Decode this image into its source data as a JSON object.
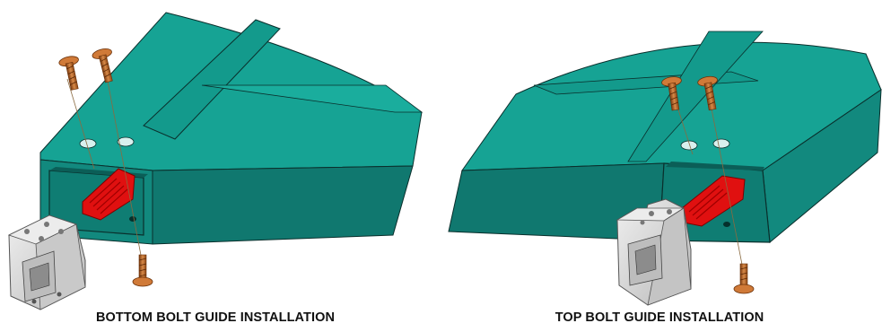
{
  "captions": {
    "left": "BOTTOM BOLT GUIDE INSTALLATION",
    "right": "TOP BOLT GUIDE INSTALLATION"
  },
  "colors": {
    "teal_top": "#16a394",
    "teal_front": "#10786f",
    "teal_side": "#138f83",
    "teal_dark": "#0b5e57",
    "red_part": "#e01010",
    "screw_bronze": "#c06a2a",
    "guide_grey": "#d9d9d9",
    "edge": "#0a2f2c"
  },
  "icons": [
    "screw-icon",
    "bolt-guide-icon",
    "latch-icon"
  ]
}
